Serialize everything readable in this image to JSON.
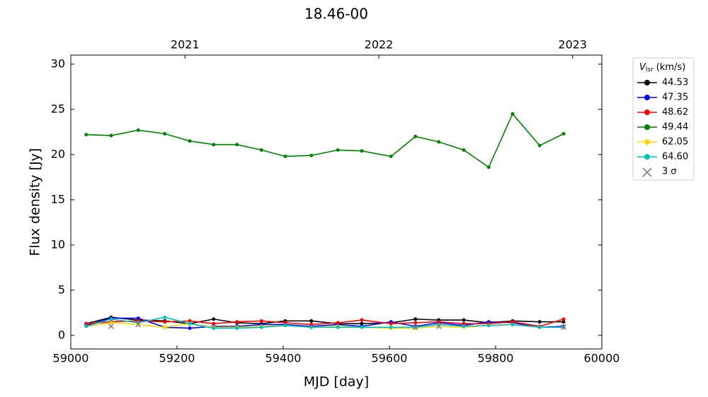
{
  "chart_data": {
    "type": "line",
    "title": "18.46-00",
    "xlabel": "MJD [day]",
    "ylabel": "Flux density [Jy]",
    "legend_title": "V",
    "legend_title_sub": "lsr",
    "legend_title_unit": "(km/s)",
    "legend": "outside-upper-right",
    "x": [
      59029,
      59076,
      59127,
      59177,
      59224,
      59269,
      59313,
      59359,
      59404,
      59453,
      59503,
      59548,
      59603,
      59649,
      59693,
      59740,
      59787,
      59832,
      59883,
      59928
    ],
    "series": [
      {
        "name": "44.53",
        "color": "#000000",
        "values": [
          1.3,
          2.0,
          1.7,
          1.6,
          1.3,
          1.8,
          1.4,
          1.3,
          1.6,
          1.6,
          1.3,
          1.3,
          1.4,
          1.8,
          1.7,
          1.7,
          1.4,
          1.6,
          1.5,
          1.5
        ]
      },
      {
        "name": "47.35",
        "color": "#0000ff",
        "values": [
          1.1,
          1.9,
          1.9,
          0.9,
          0.8,
          1.0,
          1.0,
          1.2,
          1.2,
          1.0,
          1.2,
          1.0,
          1.5,
          1.0,
          1.4,
          1.1,
          1.5,
          1.4,
          0.9,
          1.0
        ]
      },
      {
        "name": "48.62",
        "color": "#ff0000",
        "values": [
          1.3,
          1.5,
          1.6,
          1.5,
          1.6,
          1.3,
          1.5,
          1.6,
          1.4,
          1.2,
          1.4,
          1.7,
          1.3,
          1.4,
          1.5,
          1.3,
          1.3,
          1.5,
          1.0,
          1.8
        ]
      },
      {
        "name": "49.44",
        "color": "#008000",
        "values": [
          22.2,
          22.1,
          22.7,
          22.3,
          21.5,
          21.1,
          21.1,
          20.5,
          19.8,
          19.9,
          20.5,
          20.4,
          19.8,
          22.0,
          21.4,
          20.5,
          18.6,
          24.5,
          21.0,
          22.3
        ]
      },
      {
        "name": "62.05",
        "color": "#ffd700",
        "values": [
          1.0,
          1.4,
          1.2,
          0.9,
          1.3,
          0.9,
          0.9,
          1.0,
          1.1,
          0.9,
          1.0,
          0.9,
          0.8,
          0.8,
          1.0,
          0.9,
          1.1,
          1.2,
          0.9,
          0.9
        ]
      },
      {
        "name": "64.60",
        "color": "#00bfbf",
        "values": [
          1.0,
          1.8,
          1.4,
          2.0,
          1.3,
          0.8,
          0.8,
          0.9,
          1.1,
          0.9,
          0.9,
          0.9,
          0.9,
          0.9,
          1.2,
          1.0,
          1.1,
          1.2,
          0.9,
          0.9
        ]
      },
      {
        "name": "3 σ",
        "color": "#808080",
        "marker": "x",
        "x": [
          59076,
          59127,
          59649,
          59693,
          59928
        ],
        "values": [
          1.0,
          1.2,
          0.9,
          1.0,
          0.9
        ]
      }
    ],
    "xlim": [
      59000,
      60000
    ],
    "xticks": [
      59000,
      59200,
      59400,
      59600,
      59800,
      60000
    ],
    "ylim": [
      -1.5,
      31
    ],
    "yticks": [
      0,
      5,
      10,
      15,
      20,
      25,
      30
    ],
    "x2ticks": [
      {
        "value": 59215,
        "label": "2021"
      },
      {
        "value": 59580,
        "label": "2022"
      },
      {
        "value": 59945,
        "label": "2023"
      }
    ]
  }
}
